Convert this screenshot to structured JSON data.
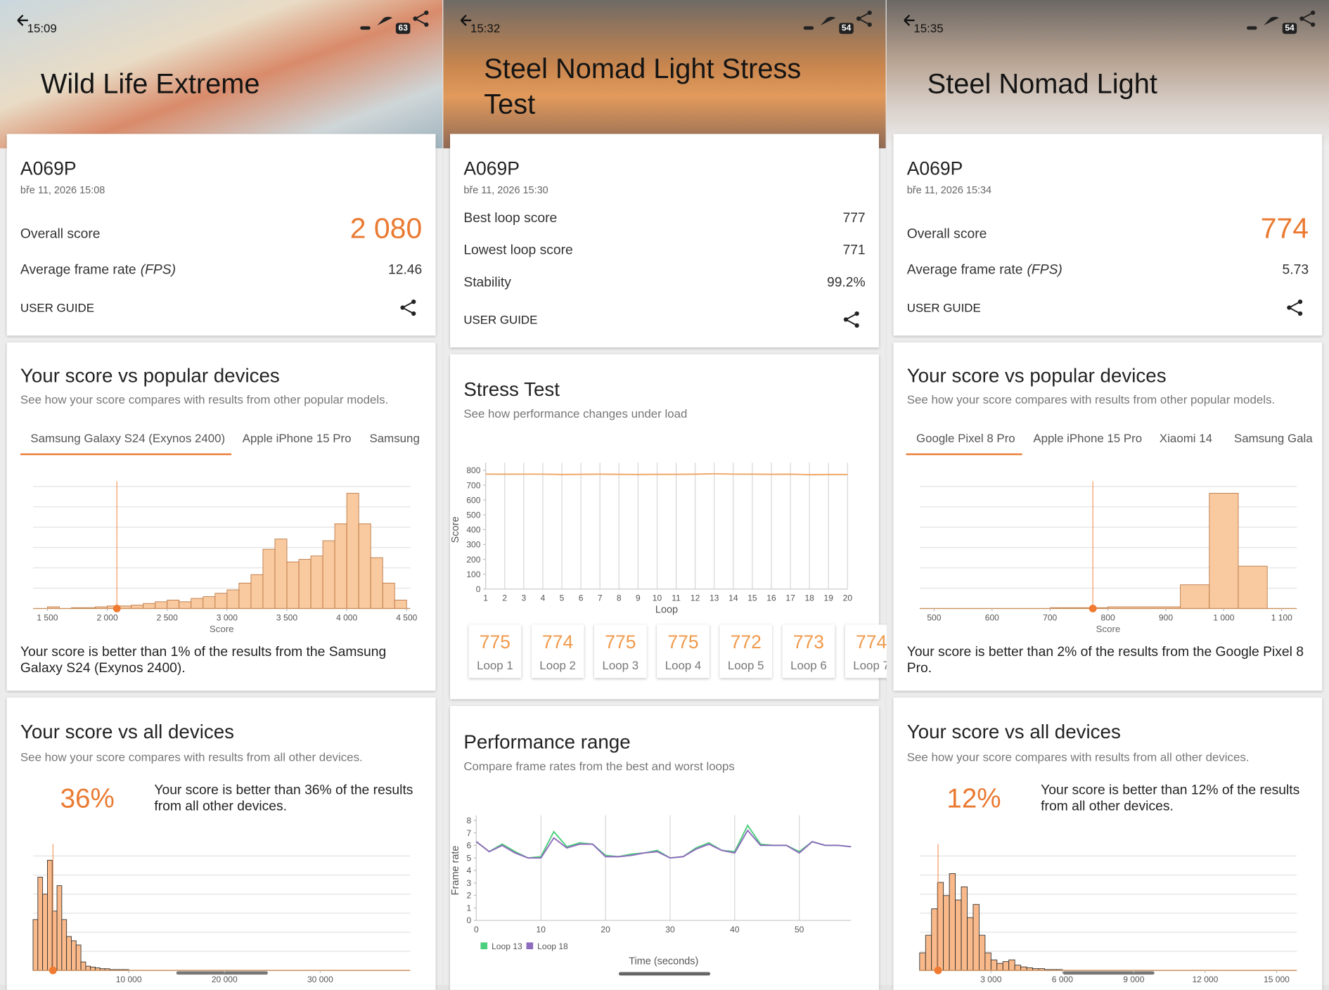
{
  "screens": [
    {
      "time": "15:09",
      "battery": "63",
      "title": "Wild Life Extreme",
      "device": "A069P",
      "date": "bře 11, 2026 15:08",
      "results": [
        {
          "label": "Overall score",
          "value": "2 080"
        },
        {
          "label": "Average frame rate",
          "unit": "(FPS)",
          "value": "12.46"
        }
      ],
      "user_guide": "USER GUIDE",
      "sections": [
        {
          "title": "Your score vs popular devices",
          "subtitle": "See how your score compares with results from other popular models.",
          "tabs": [
            "Samsung Galaxy S24 (Exynos 2400)",
            "Apple iPhone 15 Pro",
            "Samsung"
          ],
          "chart_data": {
            "type": "histogram",
            "bins": [
              1500,
              1600,
              1700,
              1800,
              1900,
              2000,
              2100,
              2200,
              2300,
              2400,
              2500,
              2600,
              2700,
              2800,
              2900,
              3000,
              3100,
              3200,
              3300,
              3400,
              3500,
              3600,
              3700,
              3800,
              3900,
              4000,
              4100,
              4200,
              4300,
              4400,
              4500
            ],
            "counts": [
              2,
              0,
              1,
              1,
              2,
              3,
              3,
              4,
              6,
              8,
              10,
              8,
              12,
              14,
              18,
              22,
              30,
              40,
              70,
              82,
              55,
              58,
              62,
              80,
              100,
              136,
              100,
              60,
              30,
              10
            ],
            "xlim": [
              1380,
              4530
            ],
            "ylim": [
              0,
              144
            ],
            "xticks": [
              {
                "value": 1500,
                "label": "1 500"
              },
              {
                "value": 2000,
                "label": "2 000"
              },
              {
                "value": 2500,
                "label": "2 500"
              },
              {
                "value": 3000,
                "label": "3 000"
              },
              {
                "value": 3500,
                "label": "3 500"
              },
              {
                "value": 4000,
                "label": "4 000"
              },
              {
                "value": 4500,
                "label": "4 500"
              }
            ],
            "xlabel": "Score",
            "marker": 2080,
            "color": "#f9c9a0",
            "edgecolor": "#b8743e",
            "grid": true
          },
          "text": "Your score is better than 1% of the results from the Samsung Galaxy S24 (Exynos 2400)."
        },
        {
          "title": "Your score vs all devices",
          "subtitle": "See how your score compares with results from all other devices.",
          "percent": "36%",
          "text": "Your score is better than 36% of the results from all other devices.",
          "chart_data": {
            "type": "histogram",
            "bins": [
              0,
              500,
              1000,
              1500,
              2000,
              2500,
              3000,
              3500,
              4000,
              4500,
              5000,
              5500,
              6000,
              6500,
              7000,
              7500,
              8000,
              8500,
              9000,
              9500,
              10000
            ],
            "counts": [
              60,
              110,
              90,
              130,
              70,
              100,
              60,
              40,
              35,
              30,
              10,
              5,
              4,
              3,
              2,
              2,
              1,
              1,
              1,
              1
            ],
            "xlim": [
              0,
              39400
            ],
            "ylim": [
              0,
              135
            ],
            "xticks": [
              {
                "value": 10000,
                "label": "10 000"
              },
              {
                "value": 20000,
                "label": "20 000"
              },
              {
                "value": 30000,
                "label": "30 000"
              }
            ],
            "marker": 2080,
            "color": "#f9b98a",
            "edgecolor": "#2a2a2a",
            "grid": true
          }
        }
      ]
    },
    {
      "time": "15:32",
      "battery": "54",
      "title": "Steel Nomad Light Stress Test",
      "device": "A069P",
      "date": "bře 11, 2026 15:30",
      "results": [
        {
          "label": "Best loop score",
          "value": "777"
        },
        {
          "label": "Lowest loop score",
          "value": "771"
        },
        {
          "label": "Stability",
          "value": "99.2%"
        }
      ],
      "user_guide": "USER GUIDE",
      "sections": [
        {
          "title": "Stress Test",
          "subtitle": "See how performance changes under load",
          "chart_data": {
            "type": "line",
            "x": [
              1,
              2,
              3,
              4,
              5,
              6,
              7,
              8,
              9,
              10,
              11,
              12,
              13,
              14,
              15,
              16,
              17,
              18,
              19,
              20
            ],
            "series": [
              {
                "color": "#f0a868",
                "values": [
                  775,
                  774,
                  775,
                  775,
                  772,
                  773,
                  774,
                  773,
                  772,
                  773,
                  773,
                  774,
                  777,
                  775,
                  774,
                  773,
                  774,
                  771,
                  772,
                  772
                ]
              }
            ],
            "xlim": [
              1,
              20
            ],
            "ylim": [
              0,
              800
            ],
            "xticks": [
              1,
              2,
              3,
              4,
              5,
              6,
              7,
              8,
              9,
              10,
              11,
              12,
              13,
              14,
              15,
              16,
              17,
              18,
              19,
              20
            ],
            "yticks": [
              0,
              100,
              200,
              300,
              400,
              500,
              600,
              700,
              800
            ],
            "xlabel": "Loop",
            "ylabel": "Score",
            "grid": "x"
          },
          "loop_labels": [
            "Loop 1",
            "Loop 2",
            "Loop 3",
            "Loop 4",
            "Loop 5",
            "Loop 6",
            "Loop 7"
          ]
        },
        {
          "title": "Performance range",
          "subtitle": "Compare frame rates from the best and worst loops",
          "chart_data": {
            "type": "line",
            "x": [
              0,
              2,
              4,
              6,
              8,
              10,
              12,
              14,
              16,
              18,
              20,
              22,
              24,
              26,
              28,
              30,
              32,
              34,
              36,
              38,
              40,
              42,
              44,
              46,
              48,
              50,
              52,
              54,
              56,
              58
            ],
            "series": [
              {
                "name": "Loop 13",
                "color": "#4ccf7c",
                "values": [
                  6.3,
                  5.5,
                  6.1,
                  5.5,
                  5.0,
                  5.1,
                  7.1,
                  5.9,
                  6.2,
                  6.1,
                  5.2,
                  5.1,
                  5.3,
                  5.4,
                  5.6,
                  5.0,
                  5.1,
                  5.8,
                  6.2,
                  5.6,
                  5.5,
                  7.6,
                  6.1,
                  6.0,
                  6.0,
                  5.5,
                  6.3,
                  6.0,
                  6.0,
                  5.9
                ]
              },
              {
                "name": "Loop 18",
                "color": "#8e6bbd",
                "values": [
                  6.3,
                  5.5,
                  6.0,
                  5.4,
                  5.0,
                  5.0,
                  6.6,
                  5.8,
                  6.1,
                  6.1,
                  5.1,
                  5.1,
                  5.2,
                  5.4,
                  5.5,
                  5.0,
                  5.1,
                  5.7,
                  6.1,
                  5.6,
                  5.4,
                  7.2,
                  6.0,
                  6.0,
                  6.0,
                  5.4,
                  6.3,
                  6.0,
                  6.0,
                  5.9
                ]
              }
            ],
            "xlim": [
              0,
              58
            ],
            "ylim": [
              0,
              8
            ],
            "xticks": [
              0,
              10,
              20,
              30,
              40,
              50
            ],
            "yticks": [
              0,
              1,
              2,
              3,
              4,
              5,
              6,
              7,
              8
            ],
            "xlabel": "Time (seconds)",
            "ylabel": "Frame rate",
            "grid": "x"
          }
        }
      ]
    },
    {
      "time": "15:35",
      "battery": "54",
      "title": "Steel Nomad Light",
      "device": "A069P",
      "date": "bře 11, 2026 15:34",
      "results": [
        {
          "label": "Overall score",
          "value": "774"
        },
        {
          "label": "Average frame rate",
          "unit": "(FPS)",
          "value": "5.73"
        }
      ],
      "user_guide": "USER GUIDE",
      "sections": [
        {
          "title": "Your score vs popular devices",
          "subtitle": "See how your score compares with results from other popular models.",
          "tabs": [
            "Google Pixel 8 Pro",
            "Apple iPhone 15 Pro",
            "Xiaomi 14",
            "Samsung Gala"
          ],
          "chart_data": {
            "type": "histogram",
            "bins": [
              700,
              800,
              925,
              975,
              1025,
              1075
            ],
            "counts": [
              1,
              2,
              28,
              136,
              50
            ],
            "xlim": [
              475,
              1126
            ],
            "ylim": [
              0,
              144
            ],
            "xticks": [
              500,
              600,
              700,
              800,
              900,
              {
                "value": 1000,
                "label": "1 000"
              },
              {
                "value": 1100,
                "label": "1 100"
              }
            ],
            "xlabel": "Score",
            "marker": 774,
            "color": "#f9c9a0",
            "edgecolor": "#b8743e",
            "grid": true
          },
          "text": "Your score is better than 2% of the results from the Google Pixel 8 Pro."
        },
        {
          "title": "Your score vs all devices",
          "subtitle": "See how your score compares with results from all other devices.",
          "percent": "12%",
          "text": "Your score is better than 12% of the results from all other devices.",
          "chart_data": {
            "type": "histogram",
            "bins": [
              0,
              250,
              500,
              750,
              1000,
              1250,
              1500,
              1750,
              2000,
              2250,
              2500,
              2750,
              3000,
              3250,
              3500,
              3750,
              4000,
              4250,
              4500,
              4750,
              5000,
              5250,
              5500,
              5750,
              6000
            ],
            "counts": [
              20,
              40,
              70,
              100,
              85,
              110,
              80,
              95,
              60,
              75,
              40,
              20,
              12,
              8,
              10,
              12,
              6,
              4,
              3,
              2,
              2,
              1,
              1,
              1
            ],
            "xlim": [
              0,
              15850
            ],
            "ylim": [
              0,
              130
            ],
            "xticks": [
              {
                "value": 3000,
                "label": "3 000"
              },
              {
                "value": 6000,
                "label": "6 000"
              },
              {
                "value": 9000,
                "label": "9 000"
              },
              {
                "value": 12000,
                "label": "12 000"
              },
              {
                "value": 15000,
                "label": "15 000"
              }
            ],
            "marker": 774,
            "color": "#f9b98a",
            "edgecolor": "#2a2a2a",
            "grid": true
          }
        }
      ]
    }
  ]
}
